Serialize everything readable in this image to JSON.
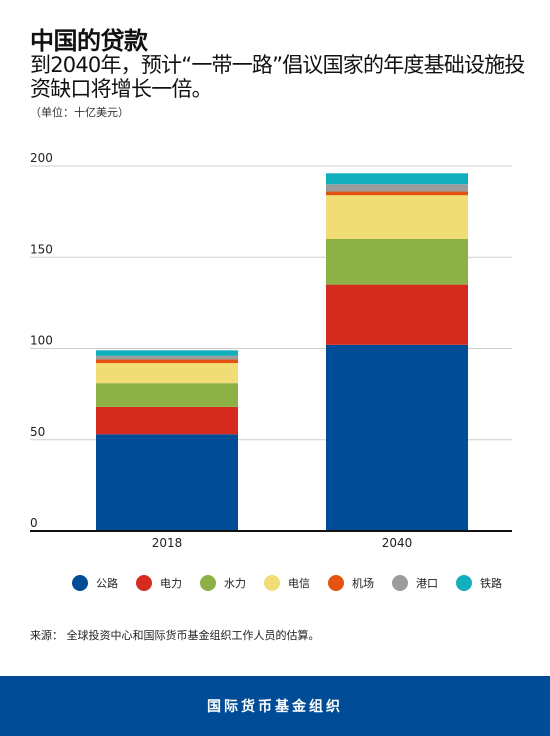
{
  "header": {
    "title": "中国的贷款",
    "subtitle": "到2040年，预计“一带一路”倡议国家的年度基础设施投资缺口将增长一倍。",
    "unit": "（单位：十亿美元）"
  },
  "chart_data": {
    "type": "bar",
    "stacked": true,
    "categories": [
      "2018",
      "2040"
    ],
    "ylim": [
      0,
      200
    ],
    "yticks": [
      "0",
      "50",
      "100",
      "150",
      "200"
    ],
    "grid": true,
    "legend_position": "bottom",
    "series": [
      {
        "name": "公路",
        "color": "#004c97",
        "values": [
          53,
          102
        ]
      },
      {
        "name": "电力",
        "color": "#d52b1e",
        "values": [
          15,
          33
        ]
      },
      {
        "name": "水力",
        "color": "#8db147",
        "values": [
          13,
          25
        ]
      },
      {
        "name": "电信",
        "color": "#f0dd75",
        "values": [
          11,
          24
        ]
      },
      {
        "name": "机场",
        "color": "#e35210",
        "values": [
          2,
          2
        ]
      },
      {
        "name": "港口",
        "color": "#9c9c9c",
        "values": [
          2,
          4
        ]
      },
      {
        "name": "铁路",
        "color": "#11aebc",
        "values": [
          3,
          6
        ]
      }
    ]
  },
  "source": "来源： 全球投资中心和国际货币基金组织工作人员的估算。",
  "footer": {
    "org": "国际货币基金组织"
  }
}
